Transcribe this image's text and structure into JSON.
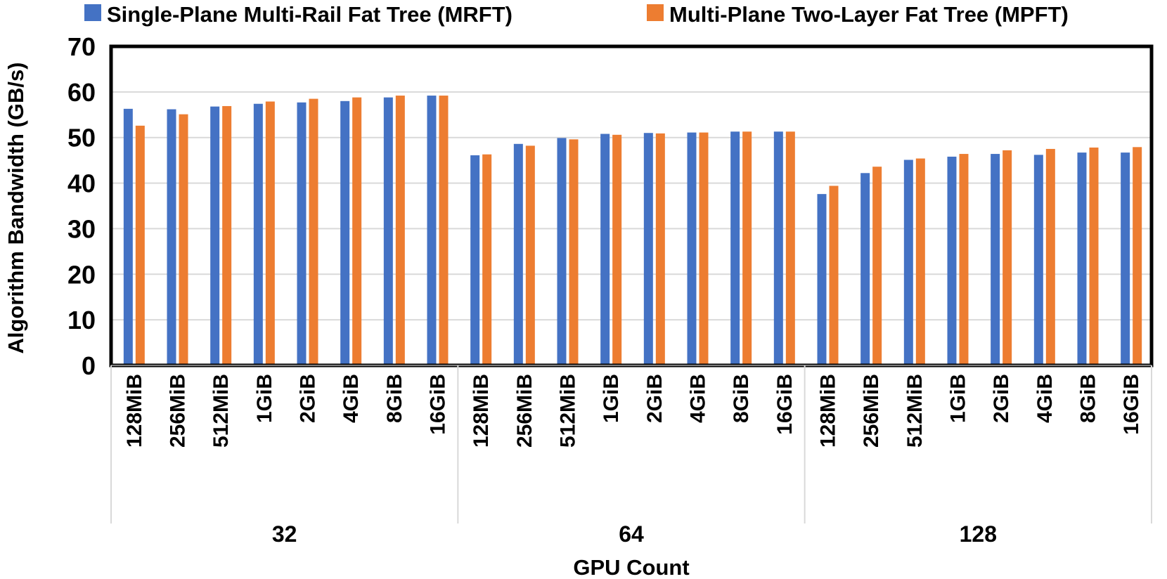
{
  "chart_data": {
    "type": "bar",
    "title": "",
    "ylabel": "Algorithm Bandwidth (GB/s)",
    "xlabel": "GPU Count",
    "ylim": [
      0,
      70
    ],
    "yticks": [
      0,
      10,
      20,
      30,
      40,
      50,
      60,
      70
    ],
    "grid": true,
    "legend_position": "top",
    "groups": [
      {
        "label": "32",
        "categories": [
          "128MiB",
          "256MiB",
          "512MiB",
          "1GiB",
          "2GiB",
          "4GiB",
          "8GiB",
          "16GiB"
        ]
      },
      {
        "label": "64",
        "categories": [
          "128MiB",
          "256MiB",
          "512MiB",
          "1GiB",
          "2GiB",
          "4GiB",
          "8GiB",
          "16GiB"
        ]
      },
      {
        "label": "128",
        "categories": [
          "128MiB",
          "256MiB",
          "512MiB",
          "1GiB",
          "2GiB",
          "4GiB",
          "8GiB",
          "16GiB"
        ]
      }
    ],
    "series": [
      {
        "name": "Single-Plane Multi-Rail Fat Tree (MRFT)",
        "color": "#4472C4",
        "values": [
          56.3,
          56.2,
          56.8,
          57.4,
          57.7,
          58.0,
          58.8,
          59.2,
          46.1,
          48.6,
          49.9,
          50.8,
          51.0,
          51.1,
          51.3,
          51.3,
          37.6,
          42.2,
          45.1,
          45.8,
          46.4,
          46.2,
          46.7,
          46.7
        ]
      },
      {
        "name": "Multi-Plane Two-Layer Fat Tree (MPFT)",
        "color": "#ED7D31",
        "values": [
          52.6,
          55.1,
          56.9,
          57.9,
          58.5,
          58.8,
          59.2,
          59.2,
          46.3,
          48.2,
          49.6,
          50.6,
          50.9,
          51.1,
          51.3,
          51.3,
          39.4,
          43.6,
          45.4,
          46.4,
          47.2,
          47.5,
          47.8,
          47.9
        ]
      }
    ]
  }
}
